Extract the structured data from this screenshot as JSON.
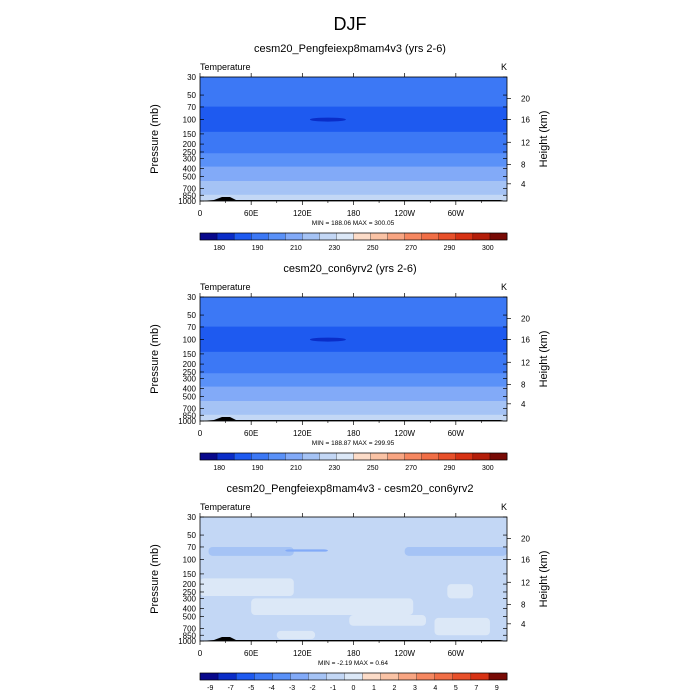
{
  "figure": {
    "title": "DJF"
  },
  "chart_data": [
    {
      "type": "heatmap",
      "title": "cesm20_Pengfeiexp8mam4v3 (yrs 2-6)",
      "variable_label": "Temperature",
      "units": "K",
      "ylabel": "Pressure (mb)",
      "y2label": "Height (km)",
      "x_ticks": [
        "0",
        "60E",
        "120E",
        "180",
        "120W",
        "60W"
      ],
      "y_ticks": [
        "30",
        "50",
        "70",
        "100",
        "150",
        "200",
        "250",
        "300",
        "400",
        "500",
        "700",
        "850",
        "1000"
      ],
      "y2_ticks": [
        "20",
        "16",
        "12",
        "8",
        "4"
      ],
      "stats": "MIN = 188.06  MAX = 300.05",
      "colorbar_labels": [
        "180",
        "190",
        "210",
        "230",
        "250",
        "270",
        "290",
        "300"
      ],
      "colorbar_colors": [
        "#08088c",
        "#0a2dc8",
        "#1e5af0",
        "#3c78f5",
        "#5a91f8",
        "#82aaf8",
        "#a5c3f5",
        "#c3d7f5",
        "#dce8f7",
        "#fcdcc8",
        "#fac3a5",
        "#f8a582",
        "#f58760",
        "#f06e46",
        "#e8502a",
        "#d73214",
        "#b41e0a",
        "#780a05"
      ],
      "min": 188.06,
      "max": 300.05,
      "rows": [
        {
          "p": 30,
          "v": 226
        },
        {
          "p": 45,
          "v": 220
        },
        {
          "p": 60,
          "v": 212
        },
        {
          "p": 80,
          "v": 204
        },
        {
          "p": 100,
          "v": 199
        },
        {
          "p": 125,
          "v": 205
        },
        {
          "p": 160,
          "v": 212
        },
        {
          "p": 200,
          "v": 220
        },
        {
          "p": 240,
          "v": 228
        },
        {
          "p": 280,
          "v": 236
        },
        {
          "p": 340,
          "v": 244
        },
        {
          "p": 420,
          "v": 254
        },
        {
          "p": 520,
          "v": 262
        },
        {
          "p": 620,
          "v": 270
        },
        {
          "p": 720,
          "v": 278
        },
        {
          "p": 800,
          "v": 284
        },
        {
          "p": 880,
          "v": 290
        },
        {
          "p": 950,
          "v": 296
        },
        {
          "p": 1000,
          "v": 300
        }
      ]
    },
    {
      "type": "heatmap",
      "title": "cesm20_con6yrv2 (yrs 2-6)",
      "variable_label": "Temperature",
      "units": "K",
      "ylabel": "Pressure (mb)",
      "y2label": "Height (km)",
      "x_ticks": [
        "0",
        "60E",
        "120E",
        "180",
        "120W",
        "60W"
      ],
      "y_ticks": [
        "30",
        "50",
        "70",
        "100",
        "150",
        "200",
        "250",
        "300",
        "400",
        "500",
        "700",
        "850",
        "1000"
      ],
      "y2_ticks": [
        "20",
        "16",
        "12",
        "8",
        "4"
      ],
      "stats": "MIN = 188.87  MAX = 299.95",
      "colorbar_labels": [
        "180",
        "190",
        "210",
        "230",
        "250",
        "270",
        "290",
        "300"
      ],
      "colorbar_colors": [
        "#08088c",
        "#0a2dc8",
        "#1e5af0",
        "#3c78f5",
        "#5a91f8",
        "#82aaf8",
        "#a5c3f5",
        "#c3d7f5",
        "#dce8f7",
        "#fcdcc8",
        "#fac3a5",
        "#f8a582",
        "#f58760",
        "#f06e46",
        "#e8502a",
        "#d73214",
        "#b41e0a",
        "#780a05"
      ],
      "min": 188.87,
      "max": 299.95,
      "rows": [
        {
          "p": 30,
          "v": 226
        },
        {
          "p": 45,
          "v": 220
        },
        {
          "p": 60,
          "v": 212
        },
        {
          "p": 80,
          "v": 204
        },
        {
          "p": 100,
          "v": 199
        },
        {
          "p": 125,
          "v": 205
        },
        {
          "p": 160,
          "v": 212
        },
        {
          "p": 200,
          "v": 220
        },
        {
          "p": 240,
          "v": 228
        },
        {
          "p": 280,
          "v": 236
        },
        {
          "p": 340,
          "v": 244
        },
        {
          "p": 420,
          "v": 254
        },
        {
          "p": 520,
          "v": 262
        },
        {
          "p": 620,
          "v": 270
        },
        {
          "p": 720,
          "v": 278
        },
        {
          "p": 800,
          "v": 284
        },
        {
          "p": 880,
          "v": 290
        },
        {
          "p": 950,
          "v": 296
        },
        {
          "p": 1000,
          "v": 300
        }
      ]
    },
    {
      "type": "heatmap",
      "title": "cesm20_Pengfeiexp8mam4v3 - cesm20_con6yrv2",
      "variable_label": "Temperature",
      "units": "K",
      "ylabel": "Pressure (mb)",
      "y2label": "Height (km)",
      "x_ticks": [
        "0",
        "60E",
        "120E",
        "180",
        "120W",
        "60W"
      ],
      "y_ticks": [
        "30",
        "50",
        "70",
        "100",
        "150",
        "200",
        "250",
        "300",
        "400",
        "500",
        "700",
        "850",
        "1000"
      ],
      "y2_ticks": [
        "20",
        "16",
        "12",
        "8",
        "4"
      ],
      "stats": "MIN =  -2.19  MAX =   0.64",
      "colorbar_labels": [
        "-9",
        "-7",
        "-5",
        "-4",
        "-3",
        "-2",
        "-1",
        "0",
        "1",
        "2",
        "3",
        "4",
        "5",
        "7",
        "9"
      ],
      "colorbar_colors": [
        "#08088c",
        "#0a2dc8",
        "#1e5af0",
        "#3c78f5",
        "#5a91f8",
        "#82aaf8",
        "#a5c3f5",
        "#c3d7f5",
        "#dce8f7",
        "#fcdcc8",
        "#fac3a5",
        "#f8a582",
        "#f58760",
        "#f06e46",
        "#e8502a",
        "#d73214",
        "#780a05"
      ],
      "min": -2.19,
      "max": 0.64,
      "background_value": -0.5,
      "regions": [
        {
          "value": -1.5,
          "lon": [
            10,
            110
          ],
          "p": [
            70,
            90
          ]
        },
        {
          "value": -1.5,
          "lon": [
            240,
            360
          ],
          "p": [
            70,
            90
          ]
        },
        {
          "value": -2.19,
          "lon": [
            100,
            150
          ],
          "p": [
            75,
            80
          ]
        },
        {
          "value": 0.3,
          "lon": [
            0,
            110
          ],
          "p": [
            170,
            280
          ]
        },
        {
          "value": 0.3,
          "lon": [
            60,
            250
          ],
          "p": [
            300,
            480
          ]
        },
        {
          "value": 0.3,
          "lon": [
            175,
            265
          ],
          "p": [
            480,
            650
          ]
        },
        {
          "value": 0.3,
          "lon": [
            290,
            320
          ],
          "p": [
            200,
            300
          ]
        },
        {
          "value": 0.3,
          "lon": [
            275,
            340
          ],
          "p": [
            520,
            850
          ]
        },
        {
          "value": 0.3,
          "lon": [
            90,
            135
          ],
          "p": [
            750,
            950
          ]
        }
      ]
    }
  ]
}
